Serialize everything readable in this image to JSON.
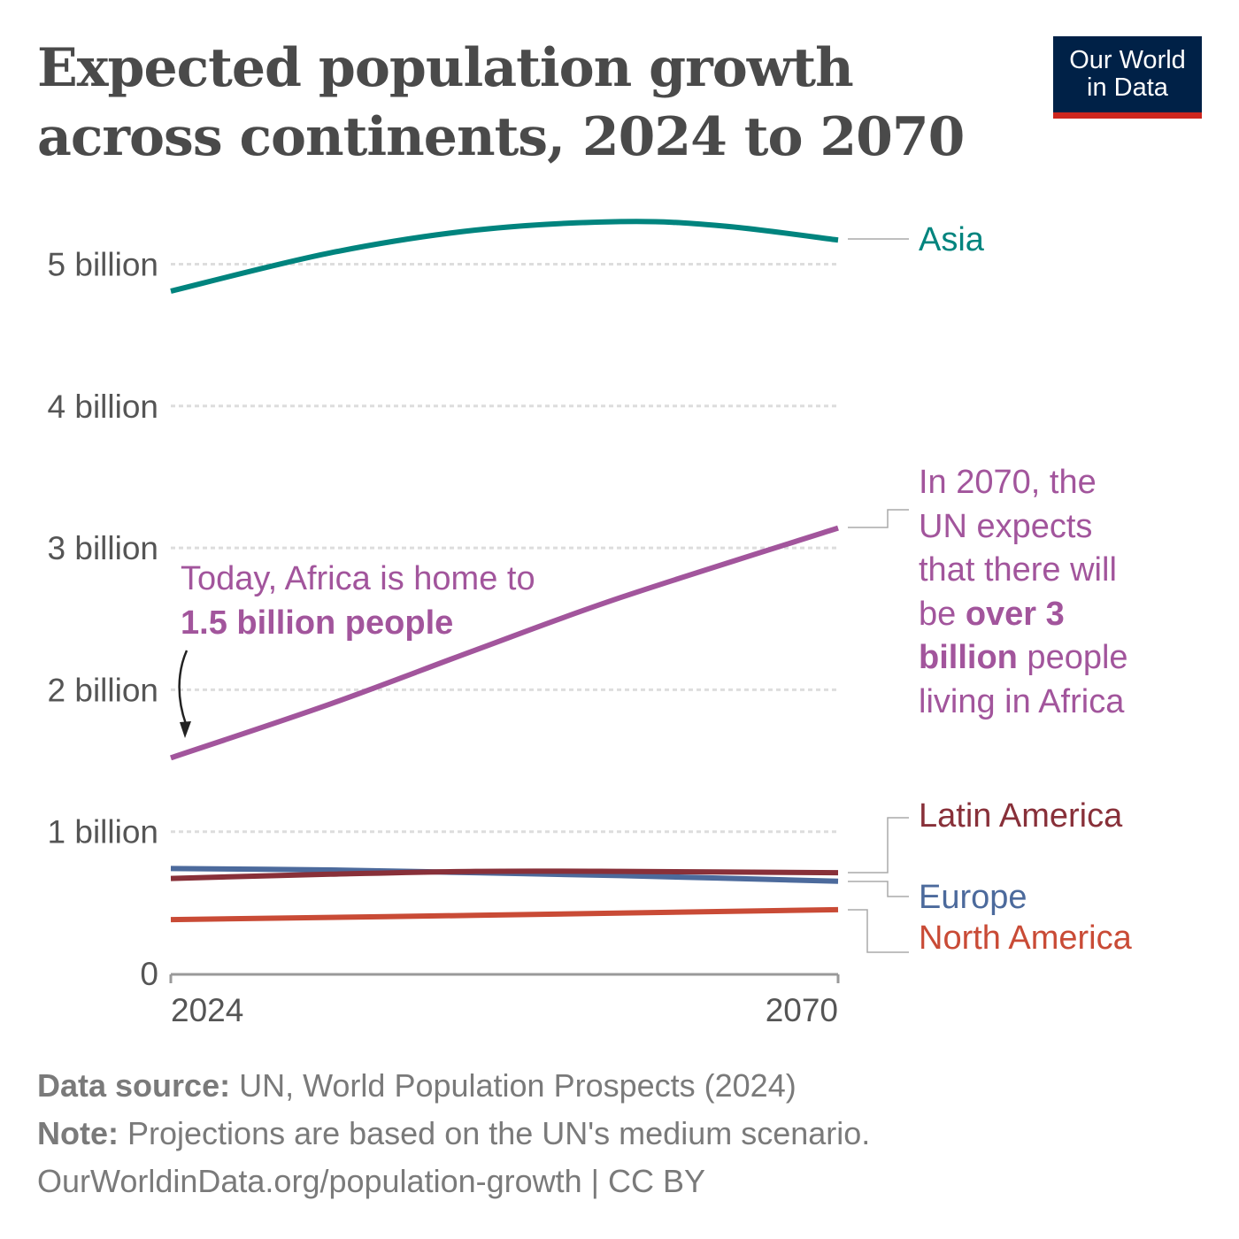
{
  "title_line1": "Expected population growth",
  "title_line2": "across continents, 2024 to 2070",
  "logo": {
    "line1": "Our World",
    "line2": "in Data",
    "bg": "#002147",
    "accent": "#ce261e"
  },
  "chart_data": {
    "type": "line",
    "x_range": [
      2024,
      2070
    ],
    "y_range": [
      0,
      5.3
    ],
    "y_unit": "billion",
    "x_ticks": [
      "2024",
      "2070"
    ],
    "y_ticks": [
      {
        "v": 0,
        "label": "0"
      },
      {
        "v": 1,
        "label": "1 billion"
      },
      {
        "v": 2,
        "label": "2 billion"
      },
      {
        "v": 3,
        "label": "3 billion"
      },
      {
        "v": 4,
        "label": "4 billion"
      },
      {
        "v": 5,
        "label": "5 billion"
      }
    ],
    "grid": "horizontal dotted",
    "series": [
      {
        "name": "Asia",
        "color": "#00847e",
        "x": [
          2024,
          2035,
          2045,
          2055,
          2062,
          2070
        ],
        "y": [
          4.81,
          5.08,
          5.24,
          5.3,
          5.27,
          5.17
        ]
      },
      {
        "name": "Africa",
        "color": "#a2559c",
        "x": [
          2024,
          2035,
          2045,
          2055,
          2070
        ],
        "y": [
          1.52,
          1.9,
          2.28,
          2.65,
          3.14
        ]
      },
      {
        "name": "Latin America",
        "color": "#883039",
        "x": [
          2024,
          2035,
          2045,
          2055,
          2070
        ],
        "y": [
          0.67,
          0.7,
          0.72,
          0.72,
          0.71
        ]
      },
      {
        "name": "Europe",
        "color": "#4c6a9c",
        "x": [
          2024,
          2035,
          2045,
          2055,
          2070
        ],
        "y": [
          0.74,
          0.73,
          0.71,
          0.69,
          0.65
        ]
      },
      {
        "name": "North America",
        "color": "#c94b36",
        "x": [
          2024,
          2045,
          2070
        ],
        "y": [
          0.38,
          0.41,
          0.45
        ]
      }
    ]
  },
  "annotation_today": {
    "line1": "Today, Africa is home to",
    "line2": "1.5 billion people"
  },
  "annotation_2070": {
    "l1": "In 2070, the",
    "l2": "UN expects",
    "l3": "that there will",
    "l4a": "be ",
    "l4b": "over 3",
    "l5a": "billion",
    "l5b": " people",
    "l6": "living in Africa"
  },
  "footer": {
    "source_label": "Data source:",
    "source": " UN, World Population Prospects (2024)",
    "note_label": "Note:",
    "note": " Projections are based on the UN's medium scenario.",
    "url": "OurWorldinData.org/population-growth | CC BY"
  }
}
